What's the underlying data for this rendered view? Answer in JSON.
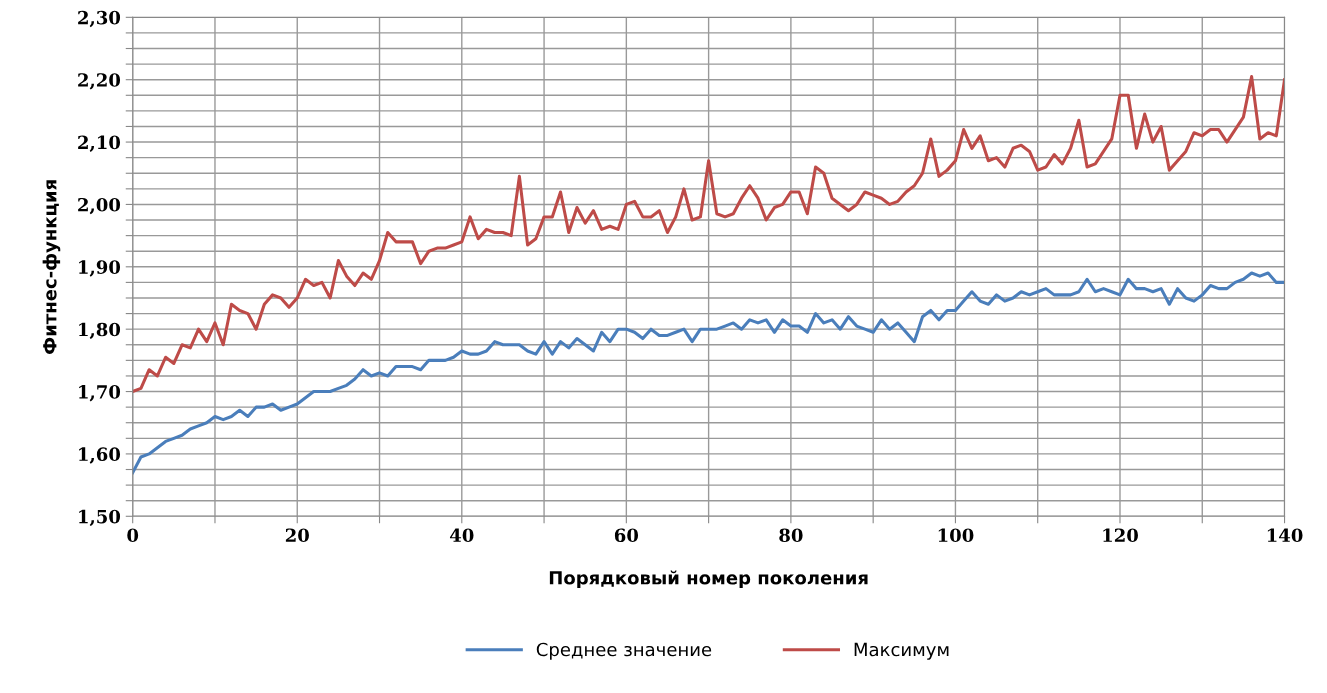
{
  "chart_data": {
    "type": "line",
    "xlabel": "Порядковый номер поколения",
    "ylabel": "Фитнес-функция",
    "x": [
      0,
      1,
      2,
      3,
      4,
      5,
      6,
      7,
      8,
      9,
      10,
      11,
      12,
      13,
      14,
      15,
      16,
      17,
      18,
      19,
      20,
      21,
      22,
      23,
      24,
      25,
      26,
      27,
      28,
      29,
      30,
      31,
      32,
      33,
      34,
      35,
      36,
      37,
      38,
      39,
      40,
      41,
      42,
      43,
      44,
      45,
      46,
      47,
      48,
      49,
      50,
      51,
      52,
      53,
      54,
      55,
      56,
      57,
      58,
      59,
      60,
      61,
      62,
      63,
      64,
      65,
      66,
      67,
      68,
      69,
      70,
      71,
      72,
      73,
      74,
      75,
      76,
      77,
      78,
      79,
      80,
      81,
      82,
      83,
      84,
      85,
      86,
      87,
      88,
      89,
      90,
      91,
      92,
      93,
      94,
      95,
      96,
      97,
      98,
      99,
      100,
      101,
      102,
      103,
      104,
      105,
      106,
      107,
      108,
      109,
      110,
      111,
      112,
      113,
      114,
      115,
      116,
      117,
      118,
      119,
      120,
      121,
      122,
      123,
      124,
      125,
      126,
      127,
      128,
      129,
      130,
      131,
      132,
      133,
      134,
      135,
      136,
      137,
      138,
      139,
      140
    ],
    "series": [
      {
        "name": "Среднее значение",
        "color": "#4a7ebb",
        "values": [
          1.57,
          1.595,
          1.6,
          1.61,
          1.62,
          1.625,
          1.63,
          1.64,
          1.645,
          1.65,
          1.66,
          1.655,
          1.66,
          1.67,
          1.66,
          1.675,
          1.675,
          1.68,
          1.67,
          1.675,
          1.68,
          1.69,
          1.7,
          1.7,
          1.7,
          1.705,
          1.71,
          1.72,
          1.735,
          1.725,
          1.73,
          1.725,
          1.74,
          1.74,
          1.74,
          1.735,
          1.75,
          1.75,
          1.75,
          1.755,
          1.765,
          1.76,
          1.76,
          1.765,
          1.78,
          1.775,
          1.775,
          1.775,
          1.765,
          1.76,
          1.78,
          1.76,
          1.78,
          1.77,
          1.785,
          1.775,
          1.765,
          1.795,
          1.78,
          1.8,
          1.8,
          1.795,
          1.785,
          1.8,
          1.79,
          1.79,
          1.795,
          1.8,
          1.78,
          1.8,
          1.8,
          1.8,
          1.805,
          1.81,
          1.8,
          1.815,
          1.81,
          1.815,
          1.795,
          1.815,
          1.805,
          1.805,
          1.795,
          1.825,
          1.81,
          1.815,
          1.8,
          1.82,
          1.805,
          1.8,
          1.795,
          1.815,
          1.8,
          1.81,
          1.795,
          1.78,
          1.82,
          1.83,
          1.815,
          1.83,
          1.83,
          1.845,
          1.86,
          1.845,
          1.84,
          1.855,
          1.845,
          1.85,
          1.86,
          1.855,
          1.86,
          1.865,
          1.855,
          1.855,
          1.855,
          1.86,
          1.88,
          1.86,
          1.865,
          1.86,
          1.855,
          1.88,
          1.865,
          1.865,
          1.86,
          1.865,
          1.84,
          1.865,
          1.85,
          1.845,
          1.855,
          1.87,
          1.865,
          1.865,
          1.875,
          1.88,
          1.89,
          1.885,
          1.89,
          1.875,
          1.875
        ]
      },
      {
        "name": "Максимум",
        "color": "#be4b48",
        "values": [
          1.7,
          1.705,
          1.735,
          1.725,
          1.755,
          1.745,
          1.775,
          1.77,
          1.8,
          1.78,
          1.81,
          1.775,
          1.84,
          1.83,
          1.825,
          1.8,
          1.84,
          1.855,
          1.85,
          1.835,
          1.85,
          1.88,
          1.87,
          1.875,
          1.85,
          1.91,
          1.885,
          1.87,
          1.89,
          1.88,
          1.91,
          1.955,
          1.94,
          1.94,
          1.94,
          1.905,
          1.925,
          1.93,
          1.93,
          1.935,
          1.94,
          1.98,
          1.945,
          1.96,
          1.955,
          1.955,
          1.95,
          2.045,
          1.935,
          1.945,
          1.98,
          1.98,
          2.02,
          1.955,
          1.995,
          1.97,
          1.99,
          1.96,
          1.965,
          1.96,
          2.0,
          2.005,
          1.98,
          1.98,
          1.99,
          1.955,
          1.98,
          2.025,
          1.975,
          1.98,
          2.07,
          1.985,
          1.98,
          1.985,
          2.01,
          2.03,
          2.01,
          1.975,
          1.995,
          2.0,
          2.02,
          2.02,
          1.985,
          2.06,
          2.05,
          2.01,
          2.0,
          1.99,
          2.0,
          2.02,
          2.015,
          2.01,
          2.0,
          2.005,
          2.02,
          2.03,
          2.05,
          2.105,
          2.045,
          2.055,
          2.07,
          2.12,
          2.09,
          2.11,
          2.07,
          2.075,
          2.06,
          2.09,
          2.095,
          2.085,
          2.055,
          2.06,
          2.08,
          2.065,
          2.09,
          2.135,
          2.06,
          2.065,
          2.085,
          2.105,
          2.175,
          2.175,
          2.09,
          2.145,
          2.1,
          2.125,
          2.055,
          2.07,
          2.085,
          2.115,
          2.11,
          2.12,
          2.12,
          2.1,
          2.12,
          2.14,
          2.205,
          2.105,
          2.115,
          2.11,
          2.2
        ]
      }
    ],
    "xlim": [
      0,
      140
    ],
    "xticks": [
      0,
      {
        "value": 10,
        "label": null
      },
      20,
      {
        "value": 30,
        "label": null
      },
      40,
      {
        "value": 50,
        "label": null
      },
      60,
      {
        "value": 70,
        "label": null
      },
      80,
      {
        "value": 90,
        "label": null
      },
      100,
      {
        "value": 110,
        "label": null
      },
      120,
      {
        "value": 130,
        "label": null
      },
      140
    ],
    "ylim": [
      1.5,
      2.3
    ],
    "yticks": [
      {
        "value": 1.5,
        "label": "1,50"
      },
      {
        "value": 1.525,
        "label": null
      },
      {
        "value": 1.55,
        "label": null
      },
      {
        "value": 1.575,
        "label": null
      },
      {
        "value": 1.6,
        "label": "1,60"
      },
      {
        "value": 1.625,
        "label": null
      },
      {
        "value": 1.65,
        "label": null
      },
      {
        "value": 1.675,
        "label": null
      },
      {
        "value": 1.7,
        "label": "1,70"
      },
      {
        "value": 1.725,
        "label": null
      },
      {
        "value": 1.75,
        "label": null
      },
      {
        "value": 1.775,
        "label": null
      },
      {
        "value": 1.8,
        "label": "1,80"
      },
      {
        "value": 1.825,
        "label": null
      },
      {
        "value": 1.85,
        "label": null
      },
      {
        "value": 1.875,
        "label": null
      },
      {
        "value": 1.9,
        "label": "1,90"
      },
      {
        "value": 1.925,
        "label": null
      },
      {
        "value": 1.95,
        "label": null
      },
      {
        "value": 1.975,
        "label": null
      },
      {
        "value": 2.0,
        "label": "2,00"
      },
      {
        "value": 2.025,
        "label": null
      },
      {
        "value": 2.05,
        "label": null
      },
      {
        "value": 2.075,
        "label": null
      },
      {
        "value": 2.1,
        "label": "2,10"
      },
      {
        "value": 2.125,
        "label": null
      },
      {
        "value": 2.15,
        "label": null
      },
      {
        "value": 2.175,
        "label": null
      },
      {
        "value": 2.2,
        "label": "2,20"
      },
      {
        "value": 2.225,
        "label": null
      },
      {
        "value": 2.25,
        "label": null
      },
      {
        "value": 2.275,
        "label": null
      },
      {
        "value": 2.3,
        "label": "2,30"
      }
    ],
    "grid": true,
    "legend": "bottom",
    "marker": "none",
    "line_style": "solid"
  }
}
